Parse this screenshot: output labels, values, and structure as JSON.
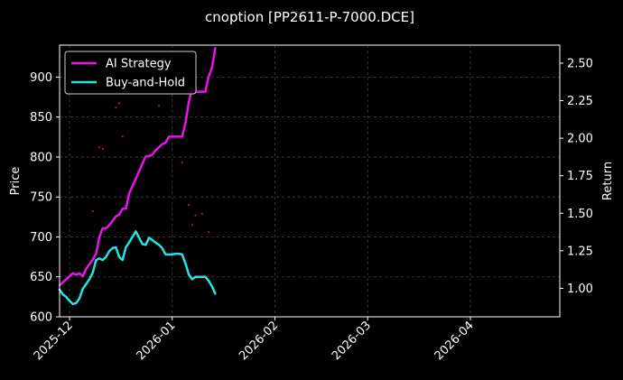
{
  "chart_data": {
    "type": "line",
    "title": "cnoption [PP2611-P-7000.DCE]",
    "left_axis": {
      "label": "Price",
      "ylim": [
        600,
        940
      ],
      "ticks": [
        600,
        650,
        700,
        750,
        800,
        850,
        900
      ]
    },
    "right_axis": {
      "label": "Return",
      "ylim": [
        0.81,
        2.62
      ],
      "ticks": [
        "1.00",
        "1.25",
        "1.50",
        "1.75",
        "2.00",
        "2.25",
        "2.50"
      ]
    },
    "x_axis": {
      "label": "",
      "xlim": [
        "2025-11-28",
        "2026-04-28"
      ],
      "ticks": [
        {
          "date": "2025-12-01",
          "label": "2025-12"
        },
        {
          "date": "2026-01-01",
          "label": "2026-01"
        },
        {
          "date": "2026-02-01",
          "label": "2026-02"
        },
        {
          "date": "2026-03-01",
          "label": "2026-03"
        },
        {
          "date": "2026-04-01",
          "label": "2026-04"
        }
      ]
    },
    "grid": true,
    "legend": "top-left",
    "series": [
      {
        "name": "AI Strategy",
        "axis": "right",
        "color": "#ee11ee",
        "points": [
          [
            "2025-11-28",
            1.02
          ],
          [
            "2025-11-29",
            1.04
          ],
          [
            "2025-11-30",
            1.06
          ],
          [
            "2025-12-01",
            1.08
          ],
          [
            "2025-12-02",
            1.1
          ],
          [
            "2025-12-03",
            1.09
          ],
          [
            "2025-12-04",
            1.1
          ],
          [
            "2025-12-05",
            1.08
          ],
          [
            "2025-12-06",
            1.13
          ],
          [
            "2025-12-07",
            1.16
          ],
          [
            "2025-12-08",
            1.19
          ],
          [
            "2025-12-09",
            1.23
          ],
          [
            "2025-12-10",
            1.34
          ],
          [
            "2025-12-11",
            1.4
          ],
          [
            "2025-12-12",
            1.4
          ],
          [
            "2025-12-13",
            1.42
          ],
          [
            "2025-12-14",
            1.45
          ],
          [
            "2025-12-15",
            1.48
          ],
          [
            "2025-12-16",
            1.49
          ],
          [
            "2025-12-17",
            1.53
          ],
          [
            "2025-12-18",
            1.53
          ],
          [
            "2025-12-19",
            1.63
          ],
          [
            "2025-12-20",
            1.68
          ],
          [
            "2025-12-21",
            1.73
          ],
          [
            "2025-12-22",
            1.78
          ],
          [
            "2025-12-23",
            1.83
          ],
          [
            "2025-12-24",
            1.88
          ],
          [
            "2025-12-25",
            1.88
          ],
          [
            "2025-12-26",
            1.89
          ],
          [
            "2025-12-27",
            1.92
          ],
          [
            "2025-12-28",
            1.94
          ],
          [
            "2025-12-29",
            1.96
          ],
          [
            "2025-12-30",
            1.97
          ],
          [
            "2025-12-31",
            2.01
          ],
          [
            "2026-01-01",
            2.01
          ],
          [
            "2026-01-02",
            2.01
          ],
          [
            "2026-01-03",
            2.01
          ],
          [
            "2026-01-04",
            2.01
          ],
          [
            "2026-01-05",
            2.1
          ],
          [
            "2026-01-06",
            2.24
          ],
          [
            "2026-01-07",
            2.33
          ],
          [
            "2026-01-08",
            2.31
          ],
          [
            "2026-01-09",
            2.31
          ],
          [
            "2026-01-10",
            2.31
          ],
          [
            "2026-01-11",
            2.31
          ],
          [
            "2026-01-12",
            2.41
          ],
          [
            "2026-01-13",
            2.47
          ],
          [
            "2026-01-14",
            2.6
          ]
        ]
      },
      {
        "name": "Buy-and-Hold",
        "axis": "left",
        "color": "#22e5e5",
        "points": [
          [
            "2025-11-28",
            634
          ],
          [
            "2025-11-29",
            628
          ],
          [
            "2025-11-30",
            625
          ],
          [
            "2025-12-01",
            620
          ],
          [
            "2025-12-02",
            616
          ],
          [
            "2025-12-03",
            617
          ],
          [
            "2025-12-04",
            623
          ],
          [
            "2025-12-05",
            635
          ],
          [
            "2025-12-06",
            641
          ],
          [
            "2025-12-07",
            647
          ],
          [
            "2025-12-08",
            655
          ],
          [
            "2025-12-09",
            671
          ],
          [
            "2025-12-10",
            673
          ],
          [
            "2025-12-11",
            671
          ],
          [
            "2025-12-12",
            675
          ],
          [
            "2025-12-13",
            682
          ],
          [
            "2025-12-14",
            686
          ],
          [
            "2025-12-15",
            687
          ],
          [
            "2025-12-16",
            675
          ],
          [
            "2025-12-17",
            671
          ],
          [
            "2025-12-18",
            687
          ],
          [
            "2025-12-19",
            693
          ],
          [
            "2025-12-20",
            700
          ],
          [
            "2025-12-21",
            707
          ],
          [
            "2025-12-22",
            699
          ],
          [
            "2025-12-23",
            691
          ],
          [
            "2025-12-24",
            690
          ],
          [
            "2025-12-25",
            699
          ],
          [
            "2025-12-26",
            696
          ],
          [
            "2025-12-27",
            693
          ],
          [
            "2025-12-28",
            690
          ],
          [
            "2025-12-29",
            686
          ],
          [
            "2025-12-30",
            678
          ],
          [
            "2025-12-31",
            678
          ],
          [
            "2026-01-01",
            678
          ],
          [
            "2026-01-02",
            679
          ],
          [
            "2026-01-03",
            679
          ],
          [
            "2026-01-04",
            678
          ],
          [
            "2026-01-05",
            667
          ],
          [
            "2026-01-06",
            653
          ],
          [
            "2026-01-07",
            647
          ],
          [
            "2026-01-08",
            650
          ],
          [
            "2026-01-09",
            650
          ],
          [
            "2026-01-10",
            650
          ],
          [
            "2026-01-11",
            650
          ],
          [
            "2026-01-12",
            645
          ],
          [
            "2026-01-13",
            638
          ],
          [
            "2026-01-14",
            629
          ]
        ]
      }
    ],
    "markers": {
      "color": "#cc1122",
      "axis": "left",
      "points": [
        [
          "2025-12-08",
          732
        ],
        [
          "2025-12-10",
          812
        ],
        [
          "2025-12-11",
          810
        ],
        [
          "2025-12-15",
          862
        ],
        [
          "2025-12-16",
          867
        ],
        [
          "2025-12-17",
          826
        ],
        [
          "2025-12-28",
          864
        ],
        [
          "2026-01-04",
          793
        ],
        [
          "2026-01-06",
          740
        ],
        [
          "2026-01-07",
          715
        ],
        [
          "2026-01-08",
          727
        ],
        [
          "2026-01-10",
          729
        ],
        [
          "2026-01-12",
          706
        ]
      ]
    }
  }
}
